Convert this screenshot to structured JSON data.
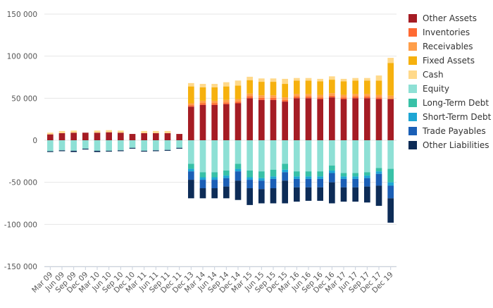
{
  "chart_data": {
    "type": "bar",
    "stacked": true,
    "ylim": [
      -150000,
      150000
    ],
    "yticks": [
      150000,
      100000,
      50000,
      0,
      -50000,
      -100000,
      -150000
    ],
    "ytick_labels": [
      "150 000",
      "100 000",
      "50 000",
      "0",
      "-50 000",
      "-100 000",
      "-150 000"
    ],
    "grid": "horizontal",
    "legend_position": "right",
    "categories": [
      "Mar 09",
      "Jun 09",
      "Sep 09",
      "Dec 09",
      "Mar 10",
      "Jun 10",
      "Sep 10",
      "Dec 10",
      "Mar 11",
      "Jun 11",
      "Sep 11",
      "Dec 11",
      "Dec 13",
      "Mar 14",
      "Jun 14",
      "Sep 14",
      "Dec 14",
      "Mar 15",
      "Jun 15",
      "Sep 15",
      "Dec 15",
      "Mar 16",
      "Jun 16",
      "Sep 16",
      "Dec 16",
      "Mar 17",
      "Jun 17",
      "Sep 17",
      "Dec 17",
      "Dec 19"
    ],
    "series": [
      {
        "name": "Other Assets",
        "color": "#a51c24",
        "values": [
          7000,
          8500,
          9000,
          9000,
          9000,
          9500,
          9000,
          7500,
          8500,
          8500,
          8500,
          7500,
          40000,
          42000,
          42000,
          43000,
          44000,
          50000,
          48000,
          48000,
          46000,
          50000,
          50000,
          49000,
          51000,
          49000,
          50000,
          50000,
          49000,
          49000
        ]
      },
      {
        "name": "Inventories",
        "color": "#ff6a33",
        "values": [
          0,
          0,
          0,
          0,
          0,
          0,
          0,
          0,
          0,
          0,
          0,
          0,
          1800,
          2000,
          2000,
          2000,
          2000,
          2500,
          2500,
          2500,
          2000,
          2000,
          2000,
          2000,
          2000,
          2000,
          2000,
          2000,
          2000,
          0
        ]
      },
      {
        "name": "Receivables",
        "color": "#ff9e4a",
        "values": [
          0,
          0,
          0,
          0,
          0,
          0,
          0,
          0,
          0,
          0,
          0,
          0,
          2200,
          3000,
          3000,
          3000,
          3000,
          3000,
          3000,
          3000,
          3000,
          3000,
          3000,
          3000,
          3000,
          3000,
          3000,
          3000,
          3000,
          4000
        ]
      },
      {
        "name": "Fixed Assets",
        "color": "#f6b10e",
        "values": [
          0,
          0,
          0,
          0,
          0,
          0,
          0,
          0,
          0,
          0,
          0,
          0,
          20000,
          16000,
          16000,
          16000,
          16000,
          16000,
          16000,
          16000,
          16000,
          16000,
          16000,
          16000,
          16000,
          16000,
          16000,
          16000,
          17000,
          39000
        ]
      },
      {
        "name": "Cash",
        "color": "#ffd98a",
        "values": [
          2000,
          2500,
          2500,
          0,
          2500,
          2500,
          2500,
          0,
          2500,
          2500,
          2500,
          0,
          4000,
          4000,
          4000,
          5000,
          6000,
          4000,
          4000,
          4000,
          6000,
          3000,
          3000,
          3000,
          4000,
          3000,
          3000,
          3000,
          6000,
          6000
        ]
      },
      {
        "name": "Equity",
        "color": "#8ee0d5",
        "values": [
          -13000,
          -12000,
          -12500,
          -10000,
          -12500,
          -12500,
          -12000,
          -9000,
          -12500,
          -12000,
          -11500,
          -9000,
          -28000,
          -38000,
          -38000,
          -36000,
          -28000,
          -36000,
          -37000,
          -35000,
          -28000,
          -37000,
          -37000,
          -37000,
          -30000,
          -39000,
          -39000,
          -38000,
          -33000,
          -34000
        ]
      },
      {
        "name": "Long-Term Debt",
        "color": "#38c1a7",
        "values": [
          0,
          0,
          0,
          0,
          0,
          0,
          0,
          0,
          0,
          0,
          0,
          0,
          -6000,
          -6000,
          -6000,
          -6000,
          -6000,
          -8000,
          -8000,
          -8000,
          -7000,
          -6000,
          -6000,
          -6000,
          -6000,
          -4000,
          -4000,
          -4000,
          -4000,
          -16000
        ]
      },
      {
        "name": "Short-Term Debt",
        "color": "#1ea6d4",
        "values": [
          0,
          0,
          0,
          0,
          0,
          0,
          0,
          0,
          0,
          0,
          0,
          0,
          -3000,
          -3000,
          -3000,
          -3000,
          -3000,
          -3000,
          -3000,
          -3000,
          -3000,
          -3000,
          -3000,
          -3000,
          -3000,
          -3000,
          -3000,
          -3000,
          -3000,
          -4000
        ]
      },
      {
        "name": "Trade Payables",
        "color": "#1b5fb6",
        "values": [
          0,
          0,
          0,
          0,
          0,
          0,
          0,
          0,
          0,
          0,
          0,
          0,
          -10000,
          -10000,
          -10000,
          -10000,
          -11000,
          -10000,
          -10000,
          -11000,
          -10000,
          -10000,
          -10000,
          -10000,
          -11000,
          -10000,
          -10000,
          -10000,
          -14000,
          -15000
        ]
      },
      {
        "name": "Other Liabilities",
        "color": "#0d2c57",
        "values": [
          -1000,
          -1000,
          -1500,
          -1000,
          -1500,
          -1000,
          -1000,
          -1000,
          -1000,
          -1000,
          -1000,
          -1000,
          -22000,
          -12000,
          -12000,
          -14000,
          -23000,
          -20000,
          -17000,
          -18000,
          -27000,
          -17000,
          -16000,
          -16000,
          -25000,
          -17000,
          -17000,
          -19000,
          -24000,
          -29000
        ]
      }
    ]
  }
}
